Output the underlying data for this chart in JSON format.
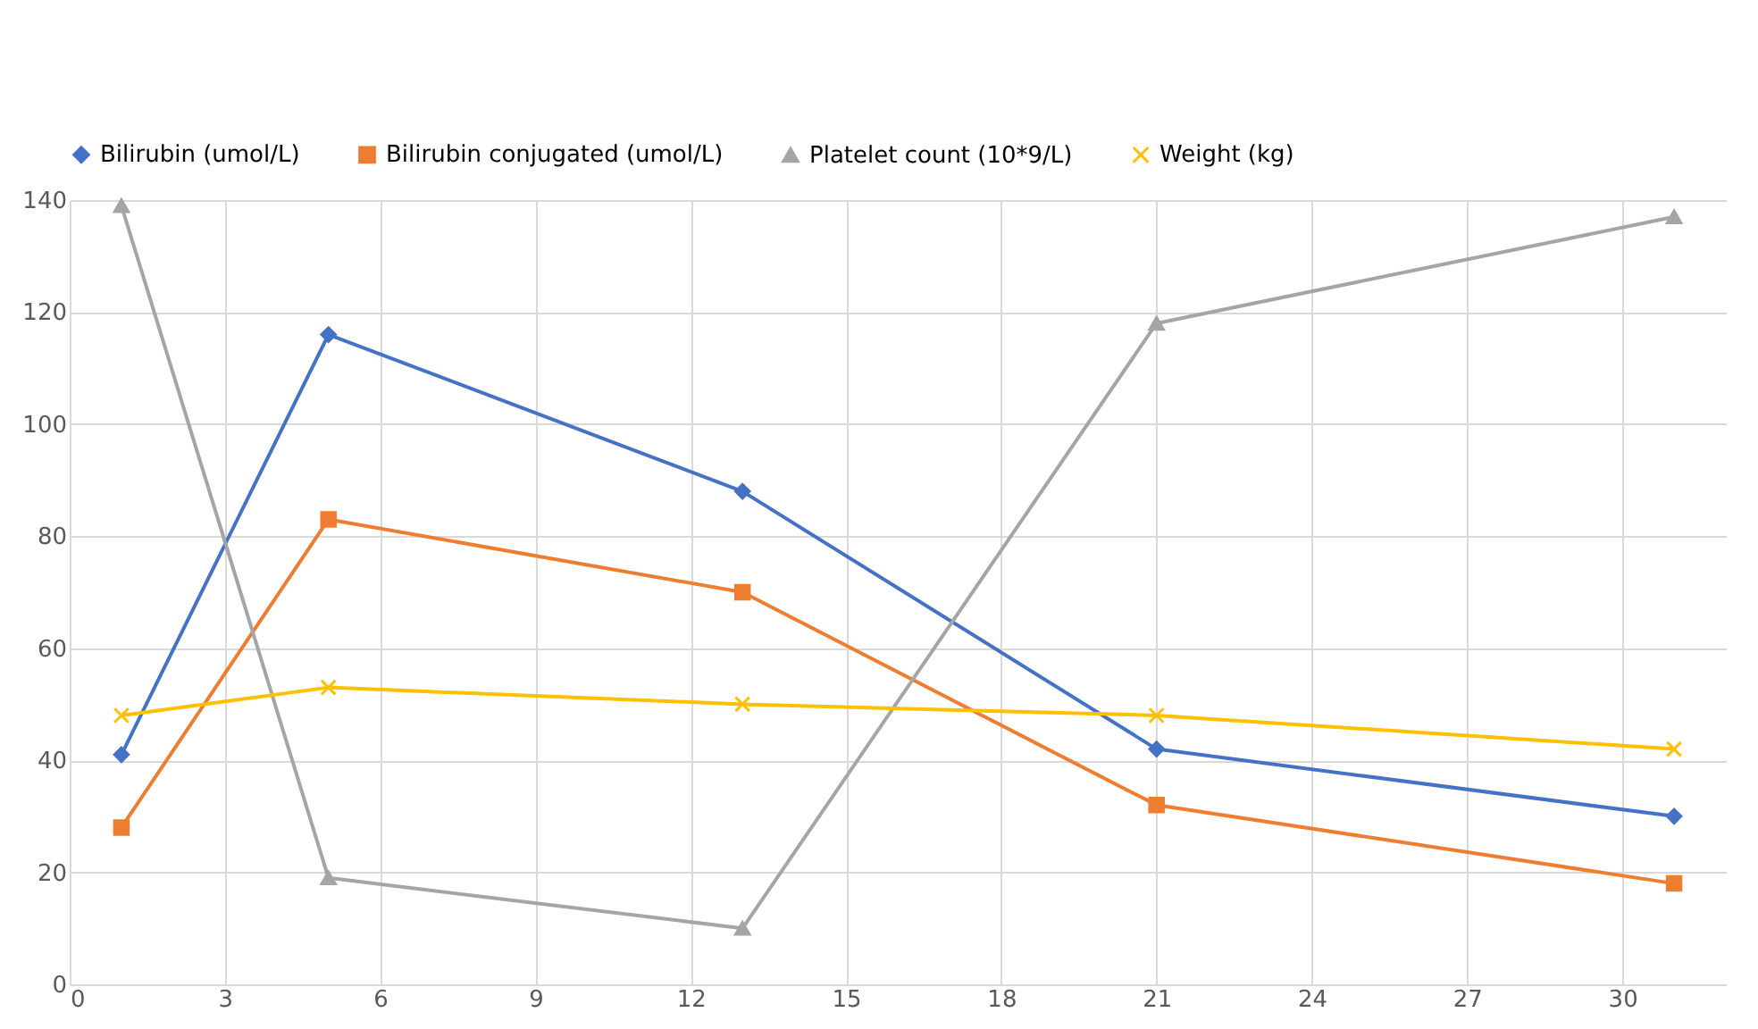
{
  "chart_data": {
    "type": "line",
    "x": [
      1,
      5,
      13,
      21,
      31
    ],
    "series": [
      {
        "name": "Bilirubin (umol/L)",
        "color": "#4472c4",
        "marker": "diamond",
        "values": [
          41,
          116,
          88,
          42,
          30
        ]
      },
      {
        "name": "Bilirubin conjugated (umol/L)",
        "color": "#ed7d31",
        "marker": "square",
        "values": [
          28,
          83,
          70,
          32,
          18
        ]
      },
      {
        "name": "Platelet count (10*9/L)",
        "color": "#a5a5a5",
        "marker": "triangle",
        "values": [
          139,
          19,
          10,
          118,
          137
        ]
      },
      {
        "name": "Weight (kg)",
        "color": "#ffc000",
        "marker": "cross",
        "values": [
          48,
          53,
          50,
          48,
          42
        ]
      }
    ],
    "xlim": [
      0,
      32
    ],
    "xticks": [
      0,
      3,
      6,
      9,
      12,
      15,
      18,
      21,
      24,
      27,
      30
    ],
    "ylim": [
      0,
      140
    ],
    "yticks": [
      0,
      20,
      40,
      60,
      80,
      100,
      120,
      140
    ],
    "grid": true,
    "legend": "top"
  }
}
